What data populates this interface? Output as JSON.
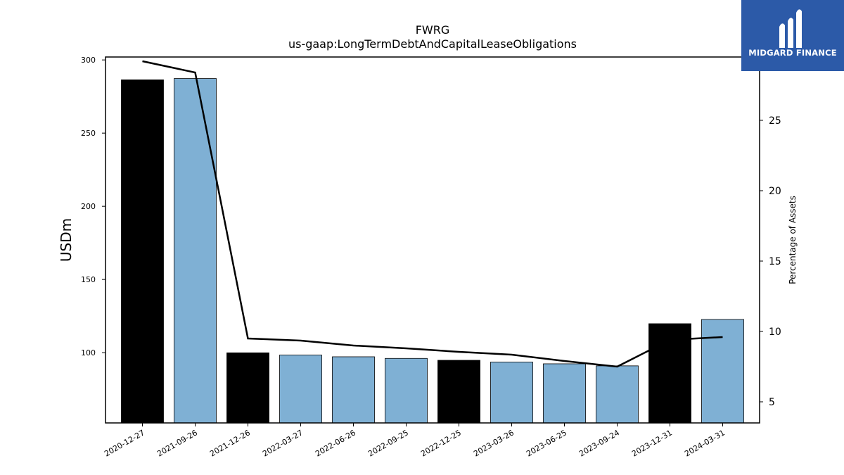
{
  "logo": {
    "text": "MIDGARD FINANCE",
    "icon": "midgard-logo-icon",
    "background": "#2c5aa8"
  },
  "chart_data": {
    "type": "bar",
    "title": "FWRG",
    "subtitle": "us-gaap:LongTermDebtAndCapitalLeaseObligations",
    "ylabel": "USDm",
    "y2label": "Percentage of Assets",
    "categories": [
      "2020-12-27",
      "2021-09-26",
      "2021-12-26",
      "2022-03-27",
      "2022-06-26",
      "2022-09-25",
      "2022-12-25",
      "2023-03-26",
      "2023-06-25",
      "2023-09-24",
      "2023-12-31",
      "2024-03-31"
    ],
    "values": [
      286.4,
      287.3,
      99.9,
      98.4,
      97.2,
      96.1,
      94.8,
      93.6,
      92.4,
      91.0,
      119.8,
      122.7
    ],
    "bar_colors": [
      "#000000",
      "#7fb0d4",
      "#000000",
      "#7fb0d4",
      "#7fb0d4",
      "#7fb0d4",
      "#000000",
      "#7fb0d4",
      "#7fb0d4",
      "#7fb0d4",
      "#000000",
      "#7fb0d4"
    ],
    "line": {
      "name": "Percentage of Assets",
      "values": [
        29.2,
        28.4,
        9.5,
        9.35,
        9.0,
        8.8,
        8.55,
        8.35,
        7.9,
        7.5,
        9.4,
        9.6
      ],
      "color": "#000000"
    },
    "ylim": [
      52,
      302
    ],
    "yticks": [
      100,
      150,
      200,
      250,
      300
    ],
    "y2lim": [
      3.5,
      29.5
    ],
    "y2ticks": [
      5,
      10,
      15,
      20,
      25
    ],
    "grid": false
  }
}
